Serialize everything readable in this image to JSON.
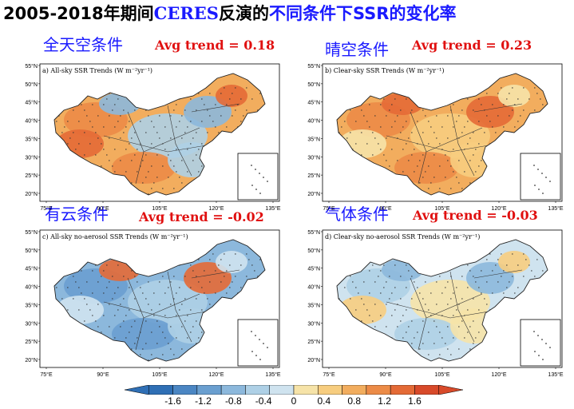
{
  "slide": {
    "title_part1": "2005-2018年期间",
    "title_part2": "CERES",
    "title_part3": "反演的",
    "title_part4": "不同条件下SSR的变化率"
  },
  "panels": [
    {
      "heading": "全天空条件",
      "trend": "Avg trend = 0.18",
      "inner_title": "a) All-sky SSR Trends (W m⁻²yr⁻¹)",
      "scheme": "mixed_warm"
    },
    {
      "heading": "晴空条件",
      "trend": "Avg trend = 0.23",
      "inner_title": "b) Clear-sky SSR Trends (W m⁻²yr⁻¹)",
      "scheme": "warm"
    },
    {
      "heading": "有云条件",
      "trend": "Avg trend = -0.02",
      "inner_title": "c) All-sky no-aerosol SSR Trends (W m⁻²yr⁻¹)",
      "scheme": "mixed_cool"
    },
    {
      "heading": "气体条件",
      "trend": "Avg trend = -0.03",
      "inner_title": "d) Clear-sky no-aerosol SSR Trends (W m⁻²yr⁻¹)",
      "scheme": "cool"
    }
  ],
  "axes": {
    "lat_labels": [
      "55°N",
      "50°N",
      "45°N",
      "40°N",
      "35°N",
      "30°N",
      "25°N",
      "20°N"
    ],
    "lon_labels": [
      "75°E",
      "90°E",
      "105°E",
      "120°E",
      "135°E"
    ]
  },
  "colorbar": {
    "ticks": [
      "-1.6",
      "-1.2",
      "-0.8",
      "-0.4",
      "0",
      "0.4",
      "0.8",
      "1.2",
      "1.6"
    ],
    "colors": [
      "#2f6fb5",
      "#4b86c3",
      "#6a9fd0",
      "#8cb8dc",
      "#aed0e6",
      "#cfe3ef",
      "#f6e3a8",
      "#f7cd7f",
      "#f2ad5e",
      "#ec8b47",
      "#e46a36",
      "#d84a2a"
    ]
  }
}
